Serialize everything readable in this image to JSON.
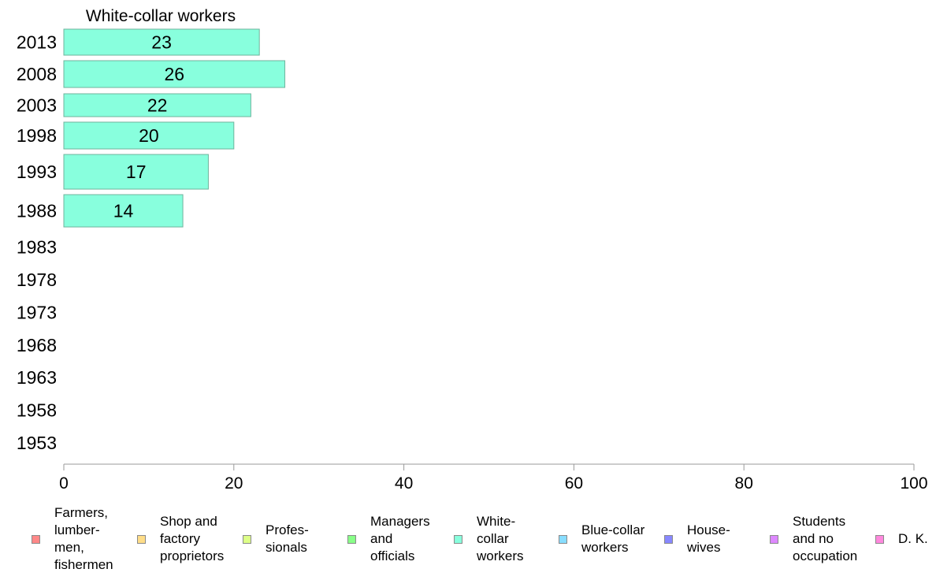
{
  "chart_data": {
    "type": "bar",
    "orientation": "horizontal",
    "title": "White-collar workers",
    "categories": [
      "2013",
      "2008",
      "2003",
      "1998",
      "1993",
      "1988",
      "1983",
      "1978",
      "1973",
      "1968",
      "1963",
      "1958",
      "1953"
    ],
    "series": [
      {
        "name": "White-collar workers",
        "values": [
          23,
          26,
          22,
          20,
          17,
          14,
          null,
          null,
          null,
          null,
          null,
          null,
          null
        ]
      }
    ],
    "data_labels": [
      "23",
      "26",
      "22",
      "20",
      "17",
      "14",
      "",
      "",
      "",
      "",
      "",
      "",
      ""
    ],
    "xlim": [
      0,
      100
    ],
    "xticks": [
      0,
      20,
      40,
      60,
      80,
      100
    ],
    "grid": false,
    "legend_position": "bottom",
    "bar_color": "#88ffdd"
  },
  "legend": {
    "items": [
      {
        "label": "Farmers,\nlumber-\nmen,\nfishermen",
        "color": "#ff8888"
      },
      {
        "label": "Shop and\nfactory\nproprietors",
        "color": "#ffdd88"
      },
      {
        "label": "Profes-\nsionals",
        "color": "#ddff88"
      },
      {
        "label": "Managers\nand\nofficials",
        "color": "#88ff88"
      },
      {
        "label": "White-\ncollar\nworkers",
        "color": "#88ffdd"
      },
      {
        "label": "Blue-collar\nworkers",
        "color": "#88ddff"
      },
      {
        "label": "House-\nwives",
        "color": "#8888ff"
      },
      {
        "label": "Students\nand no\noccupation",
        "color": "#dd88ff"
      },
      {
        "label": "D. K.",
        "color": "#ff88dd"
      }
    ]
  }
}
